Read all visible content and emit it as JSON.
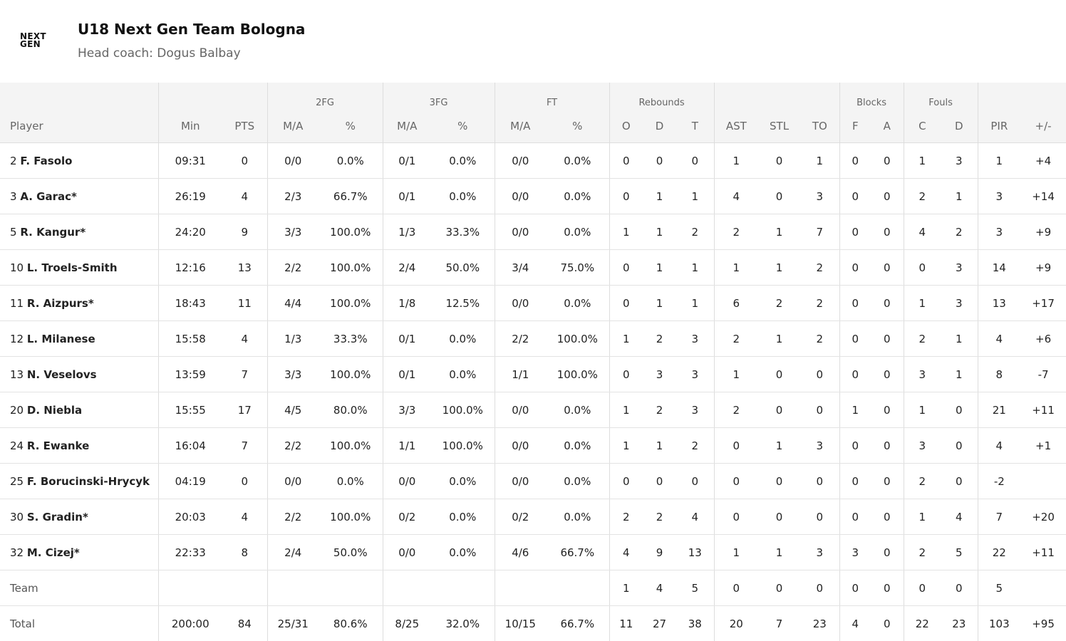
{
  "team": {
    "logo_line1": "NEXT",
    "logo_line2": "GEN",
    "name": "U18 Next Gen Team Bologna",
    "coach": "Head coach: Dogus Balbay"
  },
  "groups": {
    "fg2": "2FG",
    "fg3": "3FG",
    "ft": "FT",
    "rebounds": "Rebounds",
    "blocks": "Blocks",
    "fouls": "Fouls"
  },
  "columns": [
    "Player",
    "Min",
    "PTS",
    "M/A",
    "%",
    "M/A",
    "%",
    "M/A",
    "%",
    "O",
    "D",
    "T",
    "AST",
    "STL",
    "TO",
    "F",
    "A",
    "C",
    "D",
    "PIR",
    "+/-"
  ],
  "rows": [
    {
      "num": "2",
      "name": "F. Fasolo",
      "stats": [
        "09:31",
        "0",
        "0/0",
        "0.0%",
        "0/1",
        "0.0%",
        "0/0",
        "0.0%",
        "0",
        "0",
        "0",
        "1",
        "0",
        "1",
        "0",
        "0",
        "1",
        "3",
        "1",
        "+4"
      ]
    },
    {
      "num": "3",
      "name": "A. Garac*",
      "stats": [
        "26:19",
        "4",
        "2/3",
        "66.7%",
        "0/1",
        "0.0%",
        "0/0",
        "0.0%",
        "0",
        "1",
        "1",
        "4",
        "0",
        "3",
        "0",
        "0",
        "2",
        "1",
        "3",
        "+14"
      ]
    },
    {
      "num": "5",
      "name": "R. Kangur*",
      "stats": [
        "24:20",
        "9",
        "3/3",
        "100.0%",
        "1/3",
        "33.3%",
        "0/0",
        "0.0%",
        "1",
        "1",
        "2",
        "2",
        "1",
        "7",
        "0",
        "0",
        "4",
        "2",
        "3",
        "+9"
      ]
    },
    {
      "num": "10",
      "name": "L. Troels-Smith",
      "stats": [
        "12:16",
        "13",
        "2/2",
        "100.0%",
        "2/4",
        "50.0%",
        "3/4",
        "75.0%",
        "0",
        "1",
        "1",
        "1",
        "1",
        "2",
        "0",
        "0",
        "0",
        "3",
        "14",
        "+9"
      ]
    },
    {
      "num": "11",
      "name": "R. Aizpurs*",
      "stats": [
        "18:43",
        "11",
        "4/4",
        "100.0%",
        "1/8",
        "12.5%",
        "0/0",
        "0.0%",
        "0",
        "1",
        "1",
        "6",
        "2",
        "2",
        "0",
        "0",
        "1",
        "3",
        "13",
        "+17"
      ]
    },
    {
      "num": "12",
      "name": "L. Milanese",
      "stats": [
        "15:58",
        "4",
        "1/3",
        "33.3%",
        "0/1",
        "0.0%",
        "2/2",
        "100.0%",
        "1",
        "2",
        "3",
        "2",
        "1",
        "2",
        "0",
        "0",
        "2",
        "1",
        "4",
        "+6"
      ]
    },
    {
      "num": "13",
      "name": "N. Veselovs",
      "stats": [
        "13:59",
        "7",
        "3/3",
        "100.0%",
        "0/1",
        "0.0%",
        "1/1",
        "100.0%",
        "0",
        "3",
        "3",
        "1",
        "0",
        "0",
        "0",
        "0",
        "3",
        "1",
        "8",
        "-7"
      ]
    },
    {
      "num": "20",
      "name": "D. Niebla",
      "stats": [
        "15:55",
        "17",
        "4/5",
        "80.0%",
        "3/3",
        "100.0%",
        "0/0",
        "0.0%",
        "1",
        "2",
        "3",
        "2",
        "0",
        "0",
        "1",
        "0",
        "1",
        "0",
        "21",
        "+11"
      ]
    },
    {
      "num": "24",
      "name": "R. Ewanke",
      "stats": [
        "16:04",
        "7",
        "2/2",
        "100.0%",
        "1/1",
        "100.0%",
        "0/0",
        "0.0%",
        "1",
        "1",
        "2",
        "0",
        "1",
        "3",
        "0",
        "0",
        "3",
        "0",
        "4",
        "+1"
      ]
    },
    {
      "num": "25",
      "name": "F. Borucinski-Hrycyk",
      "stats": [
        "04:19",
        "0",
        "0/0",
        "0.0%",
        "0/0",
        "0.0%",
        "0/0",
        "0.0%",
        "0",
        "0",
        "0",
        "0",
        "0",
        "0",
        "0",
        "0",
        "2",
        "0",
        "-2",
        ""
      ]
    },
    {
      "num": "30",
      "name": "S. Gradin*",
      "stats": [
        "20:03",
        "4",
        "2/2",
        "100.0%",
        "0/2",
        "0.0%",
        "0/2",
        "0.0%",
        "2",
        "2",
        "4",
        "0",
        "0",
        "0",
        "0",
        "0",
        "1",
        "4",
        "7",
        "+20"
      ]
    },
    {
      "num": "32",
      "name": "M. Cizej*",
      "stats": [
        "22:33",
        "8",
        "2/4",
        "50.0%",
        "0/0",
        "0.0%",
        "4/6",
        "66.7%",
        "4",
        "9",
        "13",
        "1",
        "1",
        "3",
        "3",
        "0",
        "2",
        "5",
        "22",
        "+11"
      ]
    }
  ],
  "team_row": {
    "label": "Team",
    "stats": [
      "",
      "",
      "",
      "",
      "",
      "",
      "",
      "",
      "1",
      "4",
      "5",
      "0",
      "0",
      "0",
      "0",
      "0",
      "0",
      "0",
      "5",
      ""
    ]
  },
  "total_row": {
    "label": "Total",
    "stats": [
      "200:00",
      "84",
      "25/31",
      "80.6%",
      "8/25",
      "32.0%",
      "10/15",
      "66.7%",
      "11",
      "27",
      "38",
      "20",
      "7",
      "23",
      "4",
      "0",
      "22",
      "23",
      "103",
      "+95"
    ]
  }
}
